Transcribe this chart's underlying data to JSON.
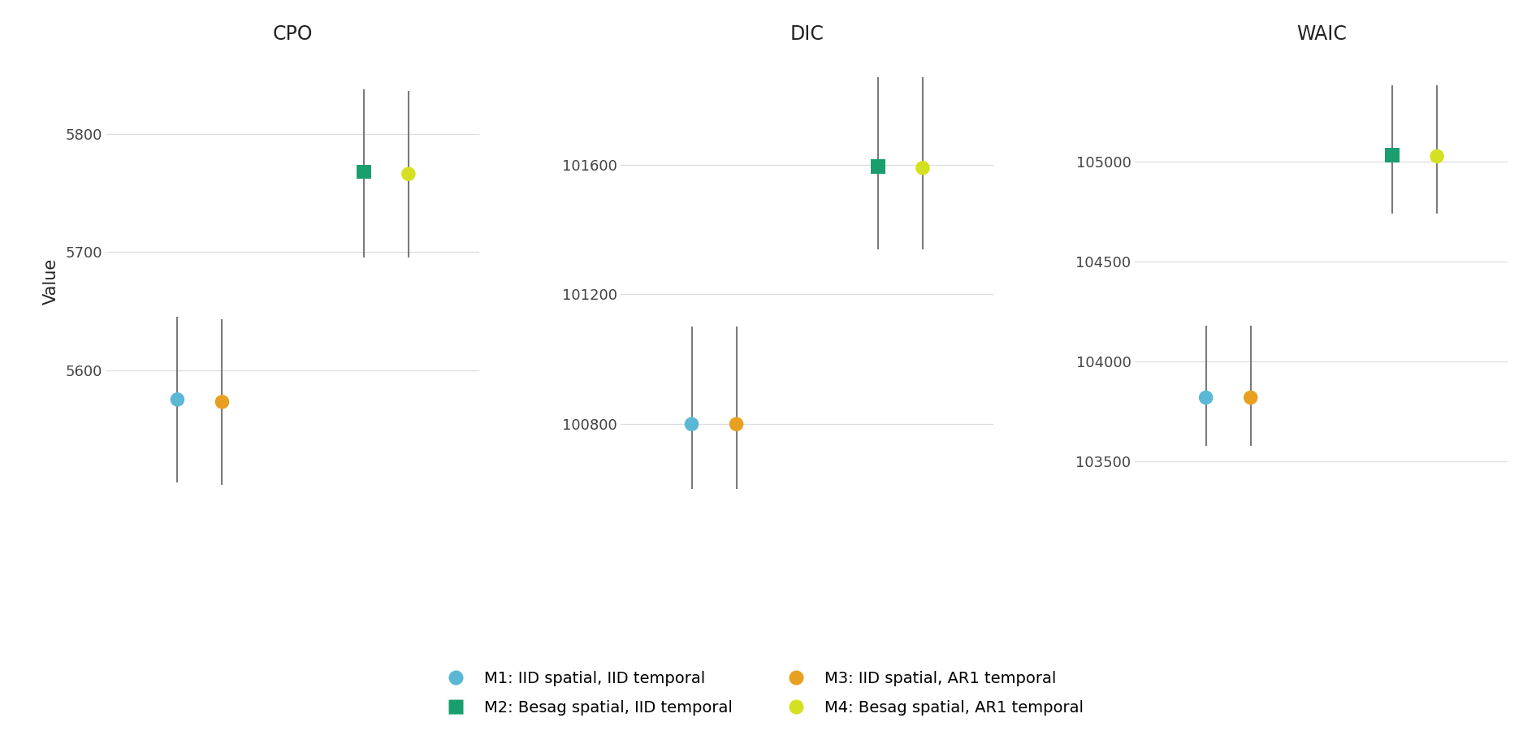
{
  "panels": [
    "CPO",
    "DIC",
    "WAIC"
  ],
  "models": [
    "M1",
    "M2",
    "M3",
    "M4"
  ],
  "colors": {
    "M1": "#5BB8D4",
    "M2": "#1A9E6E",
    "M3": "#E8A020",
    "M4": "#D4E020"
  },
  "markers": {
    "M1": "o",
    "M2": "s",
    "M3": "o",
    "M4": "o"
  },
  "x_positions": {
    "M1": 1.0,
    "M2": 2.0,
    "M3": 1.0,
    "M4": 2.0
  },
  "x_offsets": {
    "M1": -0.12,
    "M2": -0.12,
    "M3": 0.12,
    "M4": 0.12
  },
  "CPO": {
    "M1": {
      "val": 5575,
      "lo": 5505,
      "hi": 5645
    },
    "M2": {
      "val": 5768,
      "lo": 5695,
      "hi": 5838
    },
    "M3": {
      "val": 5573,
      "lo": 5503,
      "hi": 5643
    },
    "M4": {
      "val": 5766,
      "lo": 5695,
      "hi": 5836
    }
  },
  "DIC": {
    "M1": {
      "val": 100800,
      "lo": 100600,
      "hi": 101100
    },
    "M2": {
      "val": 101595,
      "lo": 101340,
      "hi": 101870
    },
    "M3": {
      "val": 100800,
      "lo": 100600,
      "hi": 101100
    },
    "M4": {
      "val": 101590,
      "lo": 101340,
      "hi": 101870
    }
  },
  "WAIC": {
    "M1": {
      "val": 103820,
      "lo": 103580,
      "hi": 104180
    },
    "M2": {
      "val": 105030,
      "lo": 104740,
      "hi": 105380
    },
    "M3": {
      "val": 103820,
      "lo": 103580,
      "hi": 104180
    },
    "M4": {
      "val": 105025,
      "lo": 104740,
      "hi": 105380
    }
  },
  "CPO_ylim": [
    5480,
    5870
  ],
  "CPO_yticks": [
    5600,
    5700,
    5800
  ],
  "DIC_ylim": [
    100530,
    101950
  ],
  "DIC_yticks": [
    100800,
    101200,
    101600
  ],
  "WAIC_ylim": [
    103250,
    105550
  ],
  "WAIC_yticks": [
    103500,
    104000,
    104500,
    105000
  ],
  "legend": [
    {
      "model": "M1",
      "label": "M1: IID spatial, IID temporal"
    },
    {
      "model": "M2",
      "label": "M2: Besag spatial, IID temporal"
    },
    {
      "model": "M3",
      "label": "M3: IID spatial, AR1 temporal"
    },
    {
      "model": "M4",
      "label": "M4: Besag spatial, AR1 temporal"
    }
  ],
  "ylabel": "Value",
  "title_fontsize": 17,
  "axis_label_fontsize": 15,
  "tick_fontsize": 13,
  "legend_fontsize": 14,
  "marker_size": 160,
  "errorbar_color": "#7a7a7a",
  "errorbar_lw": 1.5,
  "background_color": "#ffffff",
  "grid_color": "#dddddd"
}
